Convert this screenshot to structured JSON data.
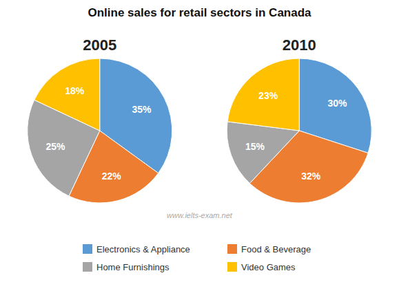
{
  "chart_data": {
    "type": "pie",
    "title": "Online sales for retail sectors in Canada",
    "categories": [
      "Electronics & Appliance",
      "Food & Beverage",
      "Home Furnishings",
      "Video Games"
    ],
    "colors": [
      "#5B9BD5",
      "#ED7D31",
      "#A5A5A5",
      "#FFC000"
    ],
    "series": [
      {
        "name": "2005",
        "values": [
          35,
          22,
          25,
          18
        ],
        "value_labels": [
          "35%",
          "22%",
          "25%",
          "18%"
        ]
      },
      {
        "name": "2010",
        "values": [
          30,
          32,
          15,
          23
        ],
        "value_labels": [
          "30%",
          "32%",
          "15%",
          "23%"
        ]
      }
    ],
    "annotations": [
      "www.ielts-exam.net"
    ],
    "data_labels": true,
    "legend": "bottom"
  }
}
